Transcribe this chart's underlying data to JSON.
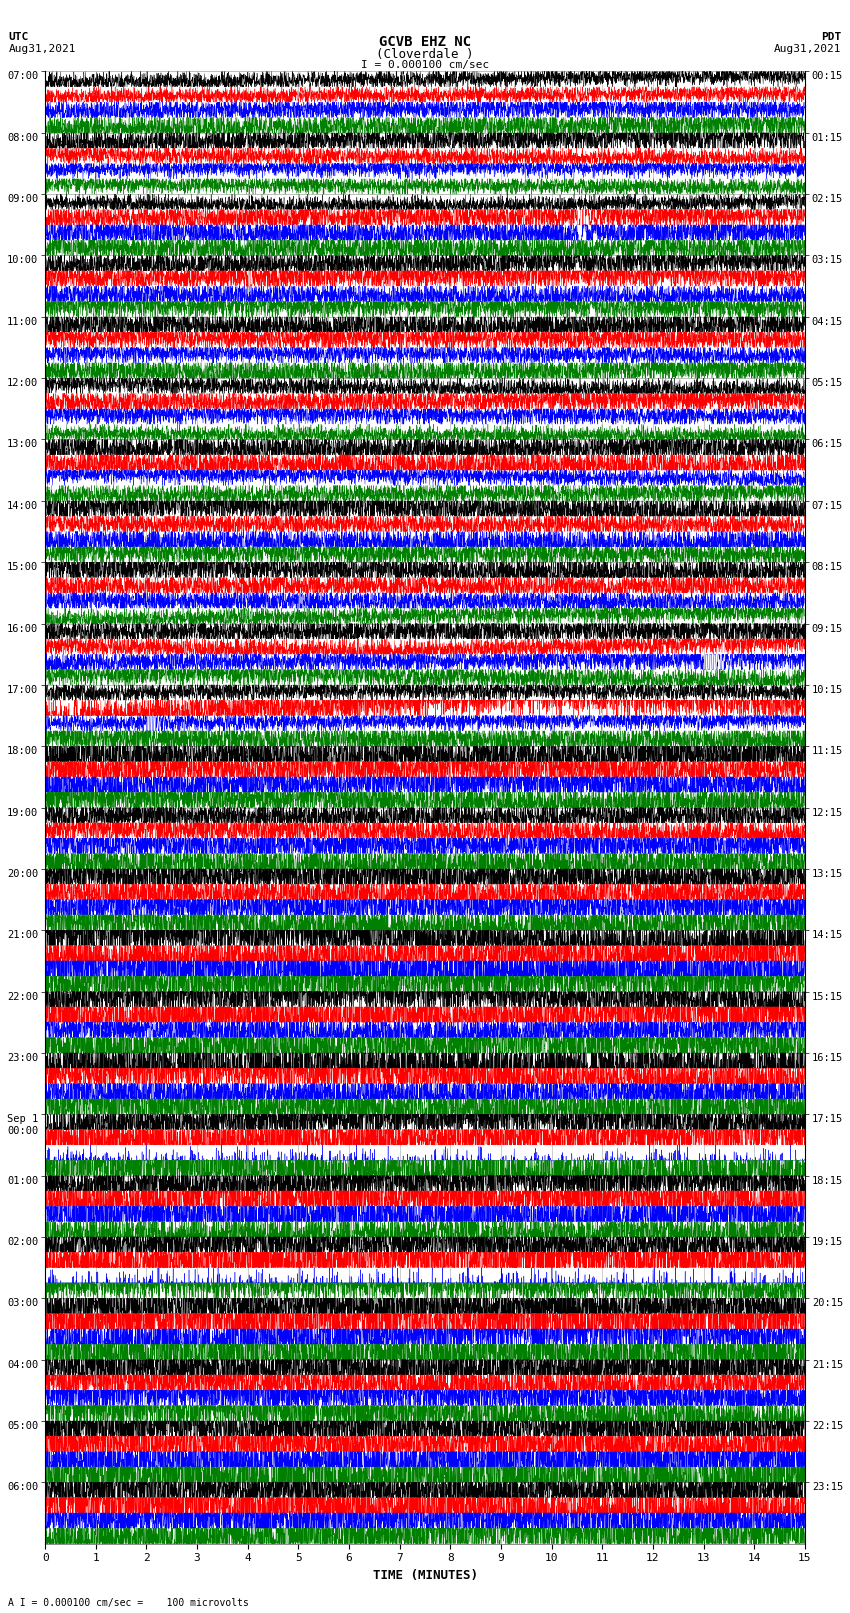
{
  "title_line1": "GCVB EHZ NC",
  "title_line2": "(Cloverdale )",
  "scale_label": "I = 0.000100 cm/sec",
  "footer_label": "A I = 0.000100 cm/sec =    100 microvolts",
  "utc_label": "UTC\nAug31,2021",
  "pdt_label": "PDT\nAug31,2021",
  "xlabel": "TIME (MINUTES)",
  "bg_color": "#ffffff",
  "grid_color": "#808080",
  "trace_colors": [
    "black",
    "red",
    "blue",
    "green"
  ],
  "utc_row_labels": [
    "07:00",
    "08:00",
    "09:00",
    "10:00",
    "11:00",
    "12:00",
    "13:00",
    "14:00",
    "15:00",
    "16:00",
    "17:00",
    "18:00",
    "19:00",
    "20:00",
    "21:00",
    "22:00",
    "23:00",
    "Sep 1\n00:00",
    "01:00",
    "02:00",
    "03:00",
    "04:00",
    "05:00",
    "06:00"
  ],
  "pdt_row_labels": [
    "00:15",
    "01:15",
    "02:15",
    "03:15",
    "04:15",
    "05:15",
    "06:15",
    "07:15",
    "08:15",
    "09:15",
    "10:15",
    "11:15",
    "12:15",
    "13:15",
    "14:15",
    "15:15",
    "16:15",
    "17:15",
    "18:15",
    "19:15",
    "20:15",
    "21:15",
    "22:15",
    "23:15"
  ],
  "num_hour_groups": 24,
  "traces_per_group": 4,
  "minutes": 15,
  "n_points": 4500,
  "seed": 7
}
